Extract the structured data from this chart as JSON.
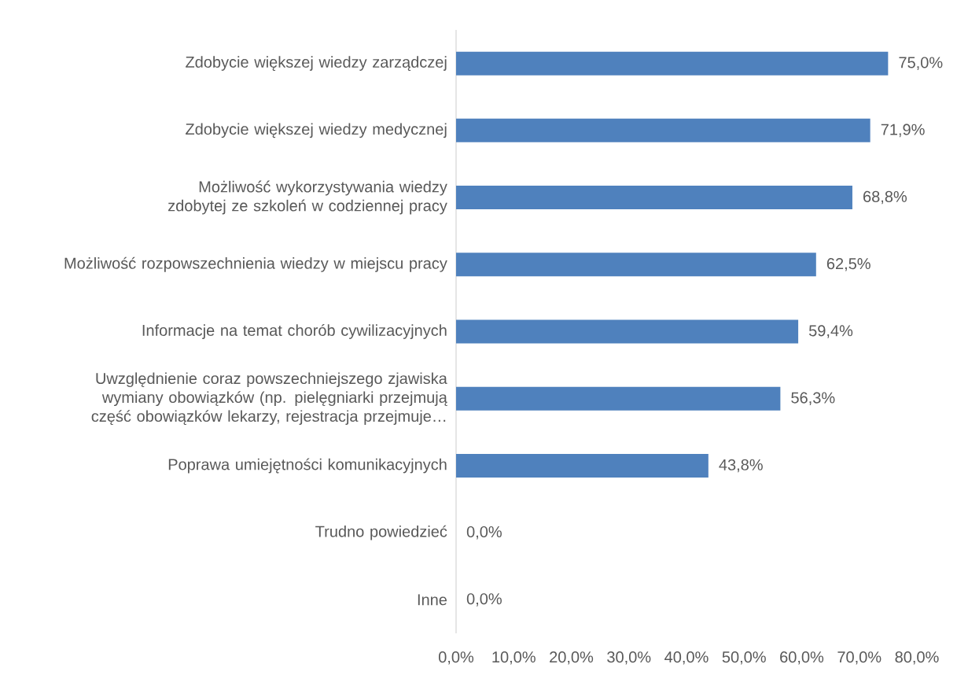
{
  "chart_data": {
    "type": "bar",
    "orientation": "horizontal",
    "categories": [
      "Zdobycie większej wiedzy zarządczej",
      "Zdobycie większej wiedzy medycznej",
      "Możliwość wykorzystywania wiedzy zdobytej ze szkoleń w codziennej pracy",
      "Możliwość rozpowszechnienia wiedzy w miejscu pracy",
      "Informacje na temat chorób cywilizacyjnych",
      "Uwzględnienie coraz powszechniejszego zjawiska wymiany obowiązków (np. pielęgniarki przejmują część obowiązków lekarzy, rejestracja przejmuje…",
      "Poprawa umiejętności komunikacyjnych",
      "Trudno powiedzieć",
      "Inne"
    ],
    "values": [
      75.0,
      71.9,
      68.8,
      62.5,
      59.4,
      56.3,
      43.8,
      0.0,
      0.0
    ],
    "value_labels": [
      "75,0%",
      "71,9%",
      "68,8%",
      "62,5%",
      "59,4%",
      "56,3%",
      "43,8%",
      "0,0%",
      "0,0%"
    ],
    "color": "#4f81bd",
    "xlim": [
      0,
      80
    ],
    "xticks": [
      {
        "value": 0,
        "label": "0,0%"
      },
      {
        "value": 10,
        "label": "10,0%"
      },
      {
        "value": 20,
        "label": "20,0%"
      },
      {
        "value": 30,
        "label": "30,0%"
      },
      {
        "value": 40,
        "label": "40,0%"
      },
      {
        "value": 50,
        "label": "50,0%"
      },
      {
        "value": 60,
        "label": "60,0%"
      },
      {
        "value": 70,
        "label": "70,0%"
      },
      {
        "value": 80,
        "label": "80,0%"
      }
    ]
  }
}
